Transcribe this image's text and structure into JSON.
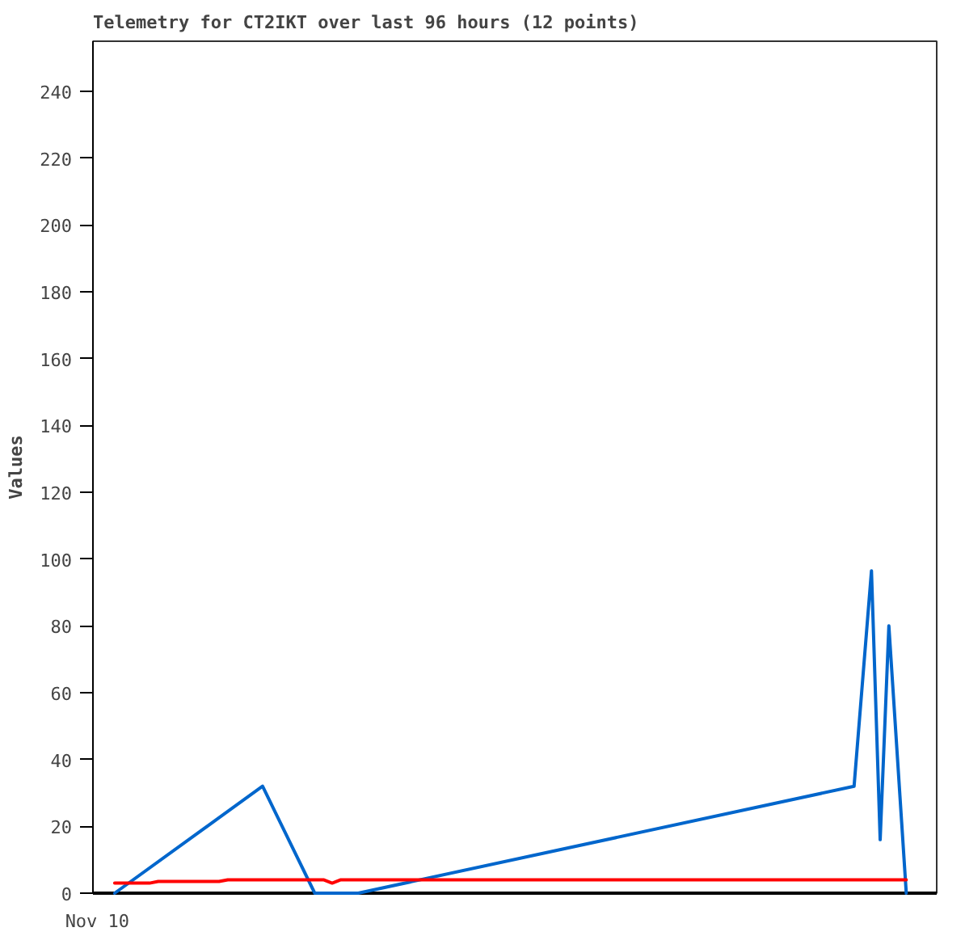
{
  "chart_data": {
    "type": "line",
    "title": "Telemetry for CT2IKT over last 96 hours (12 points)",
    "ylabel": "Values",
    "categories": [
      "Nov 10",
      null,
      null,
      null,
      null,
      null,
      null,
      null,
      null,
      null,
      null,
      null,
      null,
      null,
      null,
      null,
      null,
      null,
      null,
      null,
      null,
      null,
      null,
      null,
      null,
      null,
      null,
      null,
      null,
      null,
      null,
      null,
      null,
      null,
      null,
      null,
      null,
      null,
      null,
      null,
      null,
      null,
      null,
      null,
      null,
      null,
      null,
      null,
      null,
      null,
      null,
      null,
      null,
      null,
      null,
      null,
      null,
      null,
      null,
      null,
      null,
      null,
      null,
      null,
      null,
      null,
      null,
      null,
      null,
      null,
      null,
      null,
      null,
      null,
      null,
      null,
      null,
      null,
      null,
      null,
      null,
      null,
      null,
      null,
      null,
      null,
      null,
      null,
      null,
      null,
      null,
      null,
      null,
      null,
      null,
      null,
      null
    ],
    "ylim": [
      0,
      255
    ],
    "yticks": [
      0,
      20,
      40,
      60,
      80,
      100,
      120,
      140,
      160,
      180,
      200,
      220,
      240
    ],
    "grid": false,
    "marker": "none",
    "line_style": "solid",
    "series": [
      {
        "color": "#0066cc",
        "values": [
          null,
          null,
          0,
          null,
          null,
          null,
          null,
          null,
          null,
          null,
          null,
          null,
          null,
          null,
          null,
          null,
          null,
          null,
          null,
          32,
          null,
          null,
          null,
          null,
          null,
          0,
          null,
          null,
          null,
          null,
          0,
          null,
          null,
          null,
          null,
          null,
          null,
          null,
          null,
          null,
          null,
          null,
          null,
          null,
          null,
          null,
          null,
          null,
          null,
          null,
          null,
          null,
          null,
          null,
          null,
          null,
          null,
          null,
          null,
          null,
          null,
          null,
          null,
          null,
          null,
          null,
          null,
          null,
          null,
          null,
          null,
          null,
          null,
          null,
          null,
          null,
          null,
          null,
          null,
          null,
          null,
          null,
          null,
          null,
          null,
          null,
          null,
          32,
          null,
          96.5,
          16,
          80,
          null,
          0,
          null,
          null,
          null
        ]
      },
      {
        "color": "#ff0000",
        "values": [
          null,
          null,
          3,
          null,
          null,
          null,
          3,
          3.5,
          null,
          null,
          null,
          null,
          null,
          null,
          3.5,
          4,
          null,
          null,
          null,
          null,
          null,
          null,
          null,
          null,
          null,
          null,
          4,
          3,
          4,
          null,
          null,
          null,
          null,
          null,
          null,
          null,
          null,
          null,
          null,
          null,
          null,
          null,
          null,
          null,
          null,
          null,
          null,
          null,
          null,
          null,
          null,
          null,
          null,
          null,
          null,
          null,
          null,
          null,
          null,
          null,
          null,
          null,
          null,
          null,
          null,
          null,
          null,
          null,
          null,
          null,
          null,
          null,
          null,
          null,
          null,
          null,
          null,
          null,
          null,
          null,
          null,
          null,
          null,
          null,
          null,
          null,
          null,
          null,
          null,
          null,
          null,
          null,
          null,
          4,
          null,
          null,
          null
        ]
      }
    ]
  }
}
